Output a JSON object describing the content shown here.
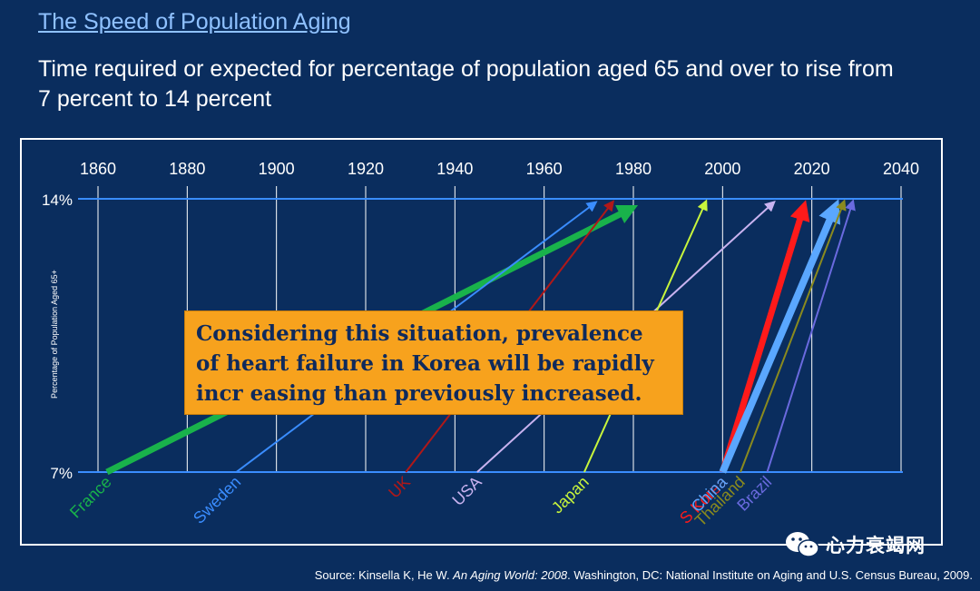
{
  "title": "The Speed of Population Aging",
  "subtitle": "Time required or expected for percentage of population aged 65 and over to rise from 7 percent to 14 percent",
  "callout": "Considering this situation, prevalence of heart failure in Korea will be rapidly incr easing than previously increased.",
  "source": {
    "prefix": "Source: Kinsella K, He W. ",
    "title": "An Aging World: 2008",
    "suffix": ". Washington, DC: National Institute on Aging and U.S. Census Bureau, 2009."
  },
  "watermark": "心力衰竭网",
  "colors": {
    "background": "#0a2d5e",
    "gridline": "#ffffff",
    "refline": "#3a8dff",
    "callout": "#f7a21d"
  },
  "chart_data": {
    "type": "line",
    "ylabel": "Percentage of Population Aged 65+",
    "x_ticks": [
      1860,
      1880,
      1900,
      1920,
      1940,
      1960,
      1980,
      2000,
      2020,
      2040
    ],
    "xlim": [
      1860,
      2040
    ],
    "y_levels": [
      "7%",
      "14%"
    ],
    "series": [
      {
        "name": "France",
        "start": 1862,
        "end": 1979,
        "color": "#19b24b",
        "width": 7
      },
      {
        "name": "Sweden",
        "start": 1891,
        "end": 1971,
        "color": "#3a8dff",
        "width": 2
      },
      {
        "name": "UK",
        "start": 1929,
        "end": 1975,
        "color": "#b01818",
        "width": 2
      },
      {
        "name": "USA",
        "start": 1945,
        "end": 2011,
        "color": "#c9b3f0",
        "width": 2
      },
      {
        "name": "Japan",
        "start": 1969,
        "end": 1996,
        "color": "#c8f53c",
        "width": 2
      },
      {
        "name": "S Korea",
        "start": 2000,
        "end": 2018,
        "color": "#ff1a1a",
        "width": 7
      },
      {
        "name": "China",
        "start": 2000,
        "end": 2025,
        "color": "#5aa7ff",
        "width": 8
      },
      {
        "name": "Thailand",
        "start": 2004,
        "end": 2027,
        "color": "#8a8a1e",
        "width": 2
      },
      {
        "name": "Brazil",
        "start": 2010,
        "end": 2029,
        "color": "#6a6adf",
        "width": 2
      }
    ]
  }
}
